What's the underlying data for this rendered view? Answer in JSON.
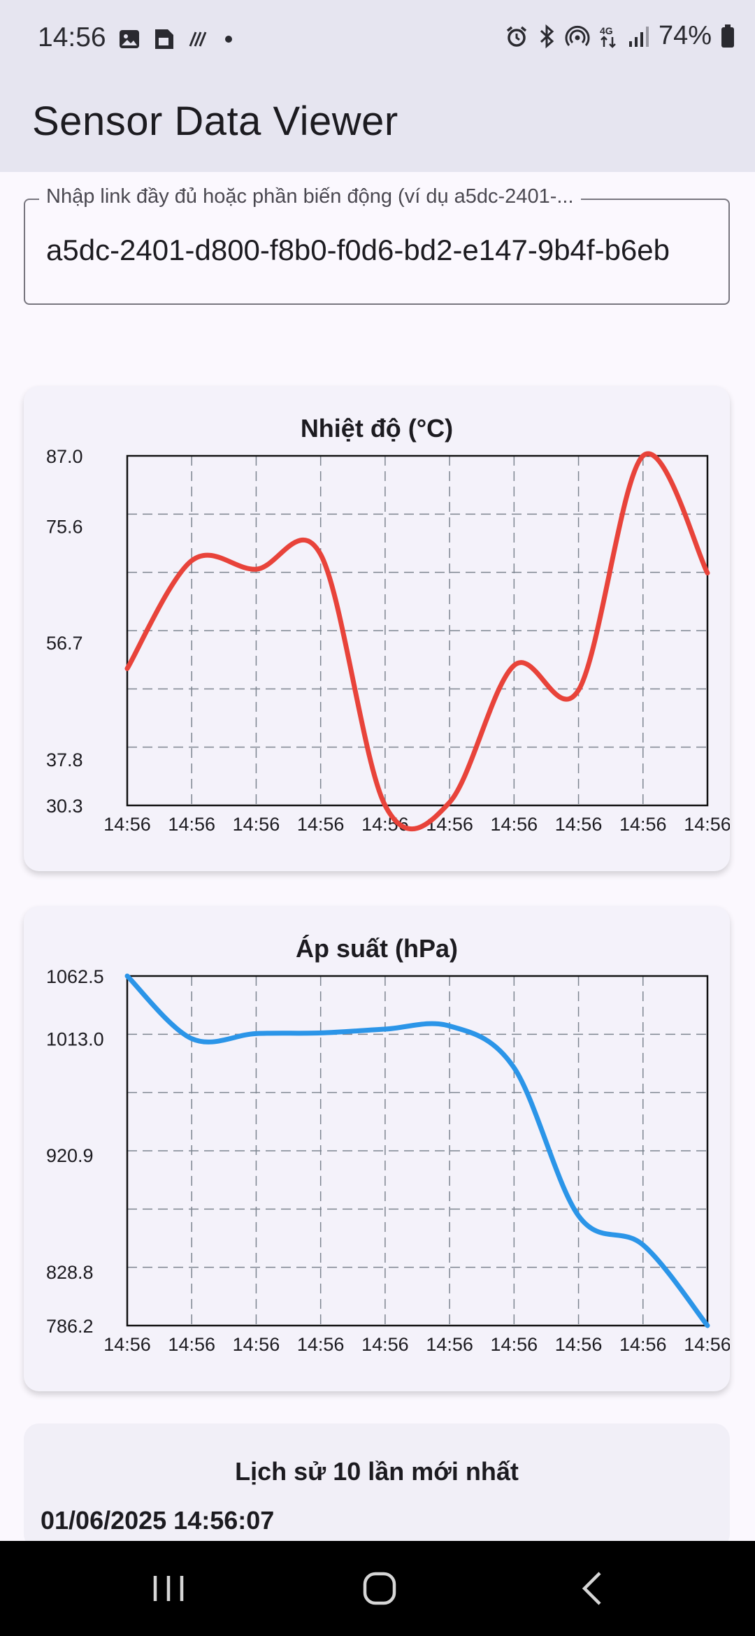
{
  "status_bar": {
    "time": "14:56",
    "battery": "74%",
    "left_icons": [
      "image-icon",
      "sim-card-icon",
      "nfc-icon",
      "dot-icon"
    ],
    "right_icons": [
      "alarm-icon",
      "bluetooth-icon",
      "hotspot-icon",
      "4g-icon",
      "signal-icon",
      "battery-icon"
    ]
  },
  "app_bar": {
    "title": "Sensor Data Viewer"
  },
  "link_input": {
    "label": "Nhập link đầy đủ hoặc phần biến động (ví dụ a5dc-2401-...",
    "value": "a5dc-2401-d800-f8b0-f0d6-bd2-e147-9b4f-b6eb"
  },
  "chart_data": [
    {
      "type": "line",
      "title": "Nhiệt độ (°C)",
      "color": "#e8433a",
      "x": [
        "14:56",
        "14:56",
        "14:56",
        "14:56",
        "14:56",
        "14:56",
        "14:56",
        "14:56",
        "14:56",
        "14:56"
      ],
      "values": [
        52.5,
        70.0,
        68.6,
        71.0,
        30.3,
        30.8,
        53.0,
        49.0,
        87.0,
        68.0
      ],
      "y_ticks": [
        "87.0",
        "75.6",
        "56.7",
        "37.8",
        "30.3"
      ],
      "y_tick_values": [
        87.0,
        75.6,
        56.7,
        37.8,
        30.3
      ],
      "ylim": [
        30.3,
        87.0
      ],
      "grid": true
    },
    {
      "type": "line",
      "title": "Áp suất (hPa)",
      "color": "#2b95e8",
      "x": [
        "14:56",
        "14:56",
        "14:56",
        "14:56",
        "14:56",
        "14:56",
        "14:56",
        "14:56",
        "14:56",
        "14:56"
      ],
      "values": [
        1062.5,
        1013.0,
        1017.0,
        1017.5,
        1020.5,
        1023.0,
        990.0,
        873.0,
        850.0,
        786.2
      ],
      "y_ticks": [
        "1062.5",
        "1013.0",
        "920.9",
        "828.8",
        "786.2"
      ],
      "y_tick_values": [
        1062.5,
        1013.0,
        920.9,
        828.8,
        786.2
      ],
      "ylim": [
        786.2,
        1062.5
      ],
      "grid": true
    }
  ],
  "history": {
    "title": "Lịch sử 10 lần mới nhất",
    "first_entry": "01/06/2025 14:56:07"
  },
  "nav_bar": {
    "buttons": [
      "recent-apps",
      "home",
      "back"
    ]
  }
}
